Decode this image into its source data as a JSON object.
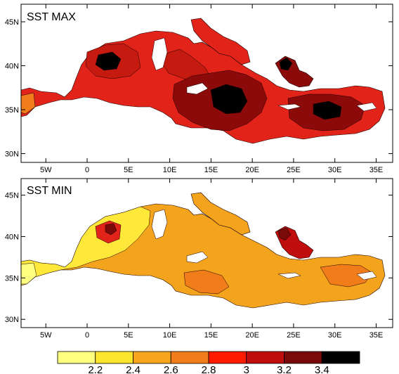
{
  "figure": {
    "panels": [
      {
        "id": "max",
        "title": "SST MAX",
        "lon_range": [
          -8,
          37
        ],
        "lat_range": [
          29,
          47
        ],
        "x_ticks": [
          "5W",
          "0",
          "5E",
          "10E",
          "15E",
          "20E",
          "25E",
          "30E",
          "35E"
        ],
        "x_tick_values": [
          -5,
          0,
          5,
          10,
          15,
          20,
          25,
          30,
          35
        ],
        "y_ticks": [
          "30N",
          "35N",
          "40N",
          "45N"
        ],
        "y_tick_values": [
          30,
          35,
          40,
          45
        ],
        "base_color": "#e2231a",
        "features": [
          {
            "level_color": "#c41a10",
            "note": "darker red Levantine/Ionian interior"
          },
          {
            "level_color": "#8c0a0a",
            "note": "central Ionian patch"
          },
          {
            "level_color": "#000000",
            "note": "maxima cores"
          }
        ]
      },
      {
        "id": "min",
        "title": "SST MIN",
        "lon_range": [
          -8,
          37
        ],
        "lat_range": [
          29,
          47
        ],
        "x_ticks": [
          "5W",
          "0",
          "5E",
          "10E",
          "15E",
          "20E",
          "25E",
          "30E",
          "35E"
        ],
        "x_tick_values": [
          -5,
          0,
          5,
          10,
          15,
          20,
          25,
          30,
          35
        ],
        "y_ticks": [
          "30N",
          "35N",
          "40N",
          "45N"
        ],
        "y_tick_values": [
          30,
          35,
          40,
          45
        ],
        "base_color": "#f4a41c",
        "features": [
          {
            "level_color": "#ffe83a",
            "note": "yellow west basin"
          },
          {
            "level_color": "#d8361a",
            "note": "Aegean red"
          }
        ]
      }
    ],
    "colorbar": {
      "colors": [
        "#ffff80",
        "#ffe62e",
        "#f7a61c",
        "#f07c1a",
        "#ff1a00",
        "#c00d0d",
        "#7a0a0a",
        "#000000"
      ],
      "labels": [
        "2.2",
        "2.4",
        "2.6",
        "2.8",
        "3",
        "3.2",
        "3.4"
      ]
    }
  }
}
